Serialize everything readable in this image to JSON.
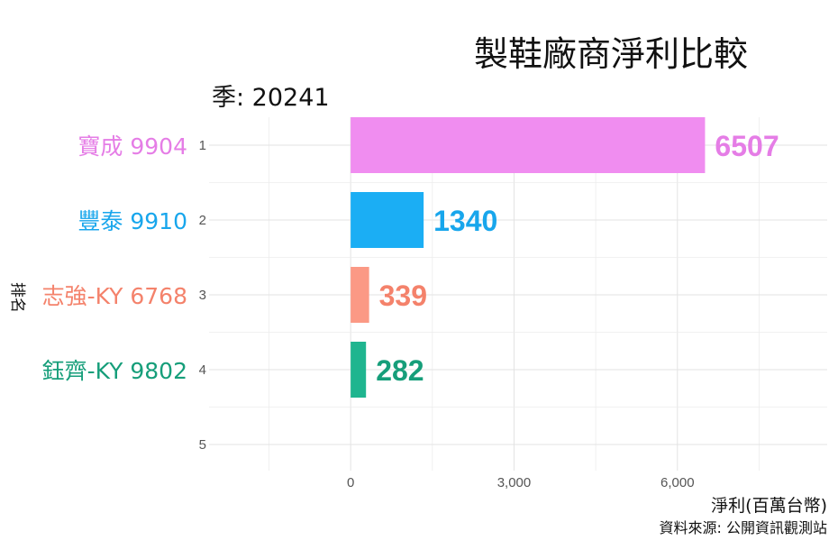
{
  "chart_data": {
    "type": "bar",
    "orientation": "horizontal",
    "title": "製鞋廠商淨利比較",
    "subtitle": "季: 20241",
    "xlabel": "淨利(百萬台幣)",
    "ylabel": "排名",
    "caption": "資料來源: 公開資訊觀測站",
    "xlim": [
      -2600,
      8750
    ],
    "xticks": [
      0,
      3000,
      6000
    ],
    "xtick_labels": [
      "0",
      "3,000",
      "6,000"
    ],
    "yticks": [
      "1",
      "2",
      "3",
      "4",
      "5"
    ],
    "grid": true,
    "categories": [
      "寶成 9904",
      "豐泰 9910",
      "志強-KY 6768",
      "鈺齊-KY 9802"
    ],
    "ranks": [
      1,
      2,
      3,
      4
    ],
    "values": [
      6507,
      1340,
      339,
      282
    ],
    "value_labels": [
      "6507",
      "1340",
      "339",
      "282"
    ],
    "colors": [
      "#F08DF0",
      "#1BAEF4",
      "#FB9985",
      "#1FB58F"
    ],
    "label_colors": [
      "#E57DE6",
      "#18A6EC",
      "#F4826B",
      "#169E7A"
    ]
  }
}
